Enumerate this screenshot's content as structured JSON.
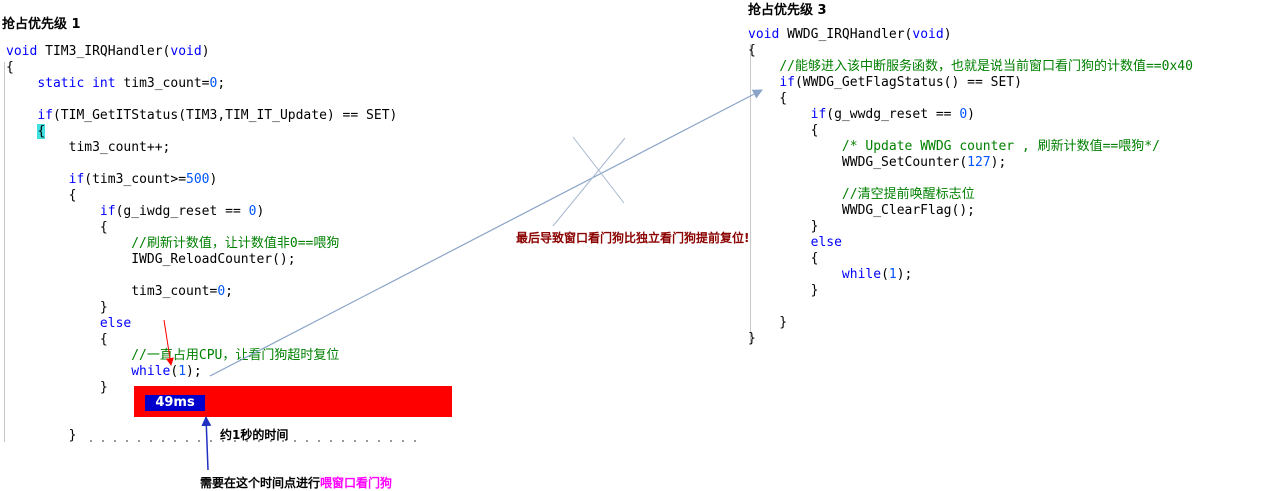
{
  "left": {
    "title": "抢占优先级 1",
    "code": [
      "void TIM3_IRQHandler(void)",
      "{",
      "    static int tim3_count=0;",
      "",
      "    if(TIM_GetITStatus(TIM3,TIM_IT_Update) == SET)",
      "    {",
      "        tim3_count++;",
      "",
      "        if(tim3_count>=500)",
      "        {",
      "            if(g_iwdg_reset == 0)",
      "            {",
      "                //刷新计数值，让计数值非0==喂狗",
      "                IWDG_ReloadCounter();",
      "",
      "                tim3_count=0;",
      "            }",
      "            else",
      "            {",
      "                //一直占用CPU，让看门狗超时复位",
      "                while(1);",
      "            }",
      "",
      "",
      "        }"
    ]
  },
  "right": {
    "title": "抢占优先级 3",
    "code": [
      "void WWDG_IRQHandler(void)",
      "{",
      "    //能够进入该中断服务函数，也就是说当前窗口看门狗的计数值==0x40",
      "    if(WWDG_GetFlagStatus() == SET)",
      "    {",
      "        if(g_wwdg_reset == 0)",
      "        {",
      "            /* Update WWDG counter , 刷新计数值==喂狗*/",
      "            WWDG_SetCounter(127);",
      "",
      "            //清空提前唤醒标志位",
      "            WWDG_ClearFlag();",
      "        }",
      "        else",
      "        {",
      "            while(1);",
      "        }",
      "",
      "    }",
      "}"
    ]
  },
  "annotations": {
    "timer_label": "49ms",
    "one_second": "约1秒的时间",
    "need_feed_prefix": "需要在这个时间点进行",
    "need_feed_highlight": "喂窗口看门狗",
    "early_reset": "最后导致窗口看门狗比独立看门狗提前复位!"
  },
  "colors": {
    "keyword": "#0000ff",
    "number": "#0055ff",
    "comment": "#008000",
    "bar_red": "#ff0000",
    "timer_blue": "#0000cc",
    "arrow_blue": "#8aa4c8",
    "note_darkred": "#8b0000",
    "highlight_magenta": "#ff00ff"
  }
}
